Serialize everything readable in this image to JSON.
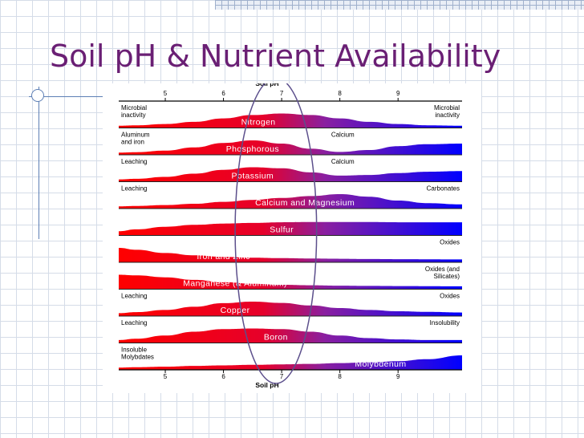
{
  "slide": {
    "title": "Soil pH & Nutrient Availability"
  },
  "colors": {
    "title": "#6a1f74",
    "acid_end": "#ff0000",
    "neutral": "#8a1fa0",
    "alkaline_end": "#0000ff",
    "ellipse": "#5c4f8c"
  },
  "chart_data": {
    "type": "area",
    "title": "",
    "xlabel": "Soil pH",
    "ylabel": "",
    "xlim": [
      4.2,
      10.1
    ],
    "x_ticks": [
      "5",
      "6",
      "7",
      "8",
      "9"
    ],
    "x_tick_values": [
      5,
      6,
      7,
      8,
      9
    ],
    "highlight_ellipse_x": [
      6.2,
      7.6
    ],
    "x": [
      4.2,
      4.5,
      5.0,
      5.5,
      6.0,
      6.5,
      7.0,
      7.5,
      8.0,
      8.5,
      9.0,
      9.5,
      10.1
    ],
    "series": [
      {
        "name": "Nitrogen",
        "left_label": "Microbial inactivity",
        "right_label": "Microbial inactivity",
        "label_x": 6.6,
        "values": [
          0.05,
          0.08,
          0.18,
          0.35,
          0.62,
          0.88,
          1.0,
          0.88,
          0.62,
          0.35,
          0.18,
          0.08,
          0.05
        ]
      },
      {
        "name": "Phosphorous",
        "left_label": "Aluminum and iron",
        "right_label": "Calcium",
        "label_x": 6.5,
        "values": [
          0.05,
          0.08,
          0.2,
          0.45,
          0.8,
          1.0,
          0.75,
          0.35,
          0.1,
          0.25,
          0.55,
          0.7,
          0.75
        ]
      },
      {
        "name": "Potassium",
        "left_label": "Leaching",
        "right_label": "Calcium",
        "label_x": 6.5,
        "values": [
          0.05,
          0.1,
          0.25,
          0.5,
          0.8,
          1.0,
          0.92,
          0.6,
          0.35,
          0.4,
          0.55,
          0.65,
          0.7
        ]
      },
      {
        "name": "Calcium and Magnesium",
        "left_label": "Leaching",
        "right_label": "Carbonates",
        "label_x": 7.4,
        "values": [
          0.05,
          0.08,
          0.15,
          0.25,
          0.4,
          0.55,
          0.7,
          0.85,
          1.0,
          0.8,
          0.5,
          0.3,
          0.2
        ]
      },
      {
        "name": "Sulfur",
        "left_label": "",
        "right_label": "",
        "label_x": 7.0,
        "values": [
          0.2,
          0.35,
          0.55,
          0.7,
          0.8,
          0.85,
          0.9,
          0.92,
          0.92,
          0.92,
          0.9,
          0.9,
          0.9
        ]
      },
      {
        "name": "Iron and Zinc",
        "left_label": "",
        "right_label": "Oxides",
        "label_x": 6.0,
        "values": [
          1.0,
          0.85,
          0.6,
          0.42,
          0.3,
          0.24,
          0.2,
          0.17,
          0.15,
          0.13,
          0.12,
          0.11,
          0.1
        ]
      },
      {
        "name": "Manganese (& Aluminum)",
        "left_label": "",
        "right_label": "Oxides (and Silicates)",
        "label_x": 6.2,
        "values": [
          1.0,
          0.95,
          0.8,
          0.6,
          0.42,
          0.3,
          0.22,
          0.18,
          0.15,
          0.13,
          0.12,
          0.11,
          0.1
        ]
      },
      {
        "name": "Copper",
        "left_label": "Leaching",
        "right_label": "Oxides",
        "label_x": 6.2,
        "values": [
          0.1,
          0.18,
          0.35,
          0.6,
          0.88,
          1.0,
          0.9,
          0.7,
          0.5,
          0.35,
          0.25,
          0.2,
          0.15
        ]
      },
      {
        "name": "Boron",
        "left_label": "Leaching",
        "right_label": "Insolubility",
        "label_x": 6.9,
        "values": [
          0.1,
          0.2,
          0.45,
          0.75,
          0.95,
          1.0,
          0.95,
          0.75,
          0.45,
          0.25,
          0.15,
          0.1,
          0.1
        ]
      },
      {
        "name": "Molybdenum",
        "left_label": "Insoluble Molybdates",
        "right_label": "",
        "label_x": 8.7,
        "values": [
          0.05,
          0.08,
          0.12,
          0.18,
          0.22,
          0.26,
          0.3,
          0.34,
          0.4,
          0.46,
          0.55,
          0.7,
          1.0
        ]
      }
    ]
  }
}
